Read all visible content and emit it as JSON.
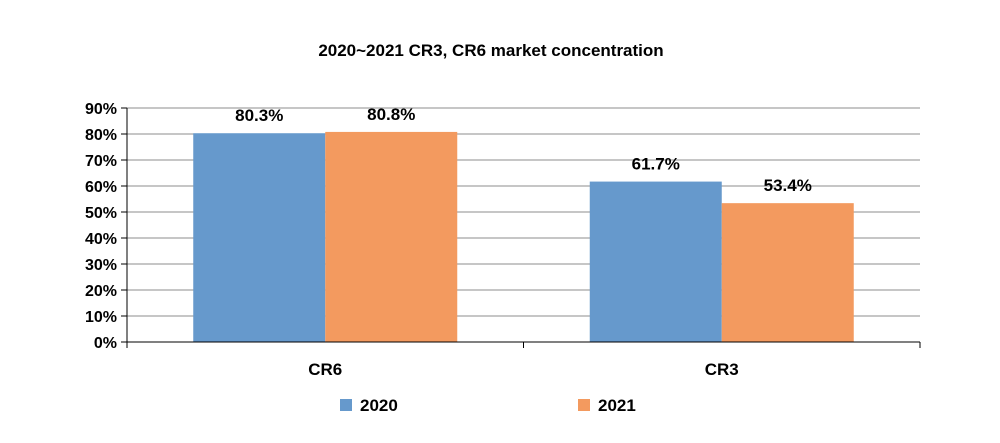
{
  "chart_data": {
    "type": "bar",
    "title": "2020~2021 CR3, CR6 market concentration",
    "xlabel": "",
    "ylabel": "",
    "categories": [
      "CR6",
      "CR3"
    ],
    "series": [
      {
        "name": "2020",
        "values": [
          80.3,
          61.7
        ],
        "labels": [
          "80.3%",
          "61.7%"
        ],
        "color": "#6699cc"
      },
      {
        "name": "2021",
        "values": [
          80.8,
          53.4
        ],
        "labels": [
          "80.8%",
          "53.4%"
        ],
        "color": "#f39a5f"
      }
    ],
    "ylim": [
      0,
      90
    ],
    "yticks": [
      0,
      10,
      20,
      30,
      40,
      50,
      60,
      70,
      80,
      90
    ],
    "ytick_labels": [
      "0%",
      "10%",
      "20%",
      "30%",
      "40%",
      "50%",
      "60%",
      "70%",
      "80%",
      "90%"
    ],
    "grid": true,
    "legend_position": "bottom"
  }
}
